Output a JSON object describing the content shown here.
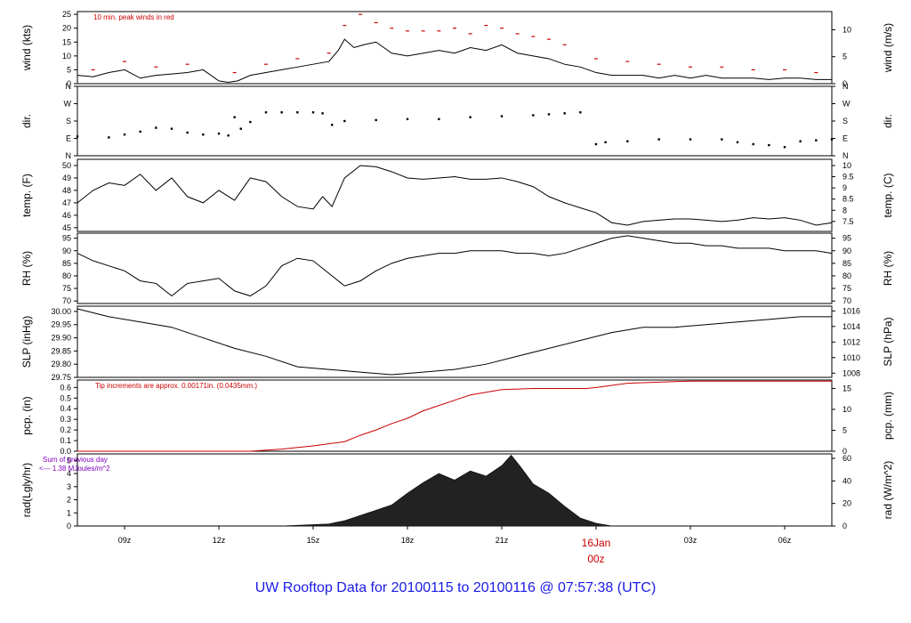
{
  "caption": "UW Rooftop Data for 20100115  to  20100116 @ 07:57:38  (UTC)",
  "notes": {
    "peak_winds": "10 min. peak winds in red",
    "tip": "Tip increments are approx. 0.00171in. (0.0435mm.)",
    "sum_line1": "Sum of previous day",
    "sum_line2": "<--- 1.38 MJoules/m^2"
  },
  "x_axis": {
    "range_hours": [
      7.5,
      31.5
    ],
    "ticks": [
      {
        "h": 9,
        "label": "09z"
      },
      {
        "h": 12,
        "label": "12z"
      },
      {
        "h": 15,
        "label": "15z"
      },
      {
        "h": 18,
        "label": "18z"
      },
      {
        "h": 21,
        "label": "21z"
      },
      {
        "h": 27,
        "label": "03z"
      },
      {
        "h": 30,
        "label": "06z"
      }
    ],
    "day_marker": {
      "h": 24,
      "date": "16Jan",
      "time": "00z"
    }
  },
  "colors": {
    "line": "#000000",
    "peak": "#cc0000",
    "pcp": "#cc0000",
    "note_purple": "#8000c0",
    "caption": "#1a1ae6"
  },
  "chart_data": [
    {
      "id": "wind",
      "type": "line",
      "ylabel": "wind (kts)",
      "ylabel_right": "wind (m/s)",
      "ylim": [
        0,
        26
      ],
      "yticks": [
        0,
        5,
        10,
        15,
        20,
        25
      ],
      "yticks_right": [
        {
          "v": 0,
          "pos": 0
        },
        {
          "v": 5,
          "pos": 9.72
        },
        {
          "v": 10,
          "pos": 19.44
        }
      ],
      "series": [
        {
          "values_x": [
            7.5,
            8.0,
            8.5,
            9.0,
            9.5,
            10.0,
            10.5,
            11.0,
            11.5,
            12.0,
            12.3,
            12.6,
            13.0,
            13.5,
            14.0,
            14.5,
            15.0,
            15.5,
            15.8,
            16.0,
            16.3,
            16.6,
            17.0,
            17.5,
            18.0,
            18.5,
            19.0,
            19.5,
            20.0,
            20.5,
            21.0,
            21.5,
            22.0,
            22.5,
            23.0,
            23.5,
            24.0,
            24.5,
            25.0,
            25.5,
            26.0,
            26.5,
            27.0,
            27.5,
            28.0,
            28.5,
            29.0,
            29.5,
            30.0,
            30.5,
            31.0,
            31.5
          ],
          "values_y": [
            3,
            2.5,
            4,
            5,
            2,
            3,
            3.5,
            4,
            5,
            1,
            0.5,
            1,
            3,
            4,
            5,
            6,
            7,
            8,
            12,
            16,
            13,
            14,
            15,
            11,
            10,
            11,
            12,
            11,
            13,
            12,
            14,
            11,
            10,
            9,
            7,
            6,
            4,
            3,
            3,
            3,
            2,
            3,
            2,
            3,
            2,
            2,
            2,
            1.5,
            2,
            2,
            1.5,
            1.5
          ]
        },
        {
          "name": "peak",
          "values_x": [
            8.0,
            9.0,
            10.0,
            11.0,
            12.5,
            13.5,
            14.5,
            15.5,
            16.0,
            16.5,
            17.0,
            17.5,
            18.0,
            18.5,
            19.0,
            19.5,
            20.0,
            20.5,
            21.0,
            21.5,
            22.0,
            22.5,
            23.0,
            24.0,
            25.0,
            26.0,
            27.0,
            28.0,
            29.0,
            30.0,
            31.0
          ],
          "values_y": [
            5,
            8,
            6,
            7,
            4,
            7,
            9,
            11,
            21,
            25,
            22,
            20,
            19,
            19,
            19,
            20,
            18,
            21,
            20,
            18,
            17,
            16,
            14,
            9,
            8,
            7,
            6,
            6,
            5,
            5,
            4
          ]
        }
      ]
    },
    {
      "id": "dir",
      "type": "scatter",
      "ylabel": "dir.",
      "ylabel_right": "dir.",
      "ylim": [
        0,
        360
      ],
      "ytick_labels": [
        {
          "v": 0,
          "label": "N"
        },
        {
          "v": 90,
          "label": "E"
        },
        {
          "v": 180,
          "label": "S"
        },
        {
          "v": 270,
          "label": "W"
        },
        {
          "v": 360,
          "label": "N"
        }
      ],
      "series": [
        {
          "values_x": [
            7.5,
            8.5,
            9.0,
            9.5,
            10.0,
            10.5,
            11.0,
            11.5,
            12.0,
            12.3,
            12.5,
            12.7,
            13.0,
            13.5,
            14.0,
            14.5,
            15.0,
            15.3,
            15.6,
            16.0,
            17.0,
            18.0,
            19.0,
            20.0,
            21.0,
            22.0,
            22.5,
            23.0,
            23.5,
            24.0,
            24.3,
            25.0,
            26.0,
            27.0,
            28.0,
            28.5,
            29.0,
            29.5,
            30.0,
            30.5,
            31.0,
            31.5
          ],
          "values_y": [
            100,
            95,
            110,
            125,
            145,
            140,
            120,
            110,
            115,
            105,
            200,
            140,
            175,
            225,
            225,
            225,
            225,
            220,
            160,
            180,
            185,
            190,
            190,
            200,
            205,
            210,
            215,
            220,
            225,
            60,
            70,
            75,
            85,
            85,
            85,
            70,
            60,
            55,
            45,
            75,
            80,
            85
          ]
        }
      ]
    },
    {
      "id": "temp",
      "type": "line",
      "ylabel": "temp. (F)",
      "ylabel_right": "temp. (C)",
      "ylim": [
        44.7,
        50.5
      ],
      "yticks": [
        45,
        46,
        47,
        48,
        49,
        50
      ],
      "yticks_right": [
        {
          "v": 7.5,
          "pos": 45.5
        },
        {
          "v": 8,
          "pos": 46.4
        },
        {
          "v": 8.5,
          "pos": 47.3
        },
        {
          "v": 9,
          "pos": 48.2
        },
        {
          "v": 9.5,
          "pos": 49.1
        },
        {
          "v": 10,
          "pos": 50.0
        }
      ],
      "series": [
        {
          "values_x": [
            7.5,
            8.0,
            8.5,
            9.0,
            9.5,
            10.0,
            10.5,
            11.0,
            11.5,
            12.0,
            12.5,
            13.0,
            13.5,
            14.0,
            14.5,
            15.0,
            15.3,
            15.6,
            16.0,
            16.5,
            17.0,
            17.5,
            18.0,
            18.5,
            19.0,
            19.5,
            20.0,
            20.5,
            21.0,
            21.5,
            22.0,
            22.5,
            23.0,
            23.5,
            24.0,
            24.5,
            25.0,
            25.5,
            26.0,
            26.5,
            27.0,
            27.5,
            28.0,
            28.5,
            29.0,
            29.5,
            30.0,
            30.5,
            31.0,
            31.5
          ],
          "values_y": [
            47.0,
            48.0,
            48.6,
            48.4,
            49.3,
            48.0,
            49.0,
            47.5,
            47.0,
            48.0,
            47.2,
            49.0,
            48.7,
            47.5,
            46.7,
            46.5,
            47.5,
            46.7,
            49.0,
            50.0,
            49.9,
            49.5,
            49.0,
            48.9,
            49.0,
            49.1,
            48.9,
            48.9,
            49.0,
            48.7,
            48.3,
            47.5,
            47.0,
            46.6,
            46.2,
            45.4,
            45.2,
            45.5,
            45.6,
            45.7,
            45.7,
            45.6,
            45.5,
            45.6,
            45.8,
            45.7,
            45.8,
            45.6,
            45.2,
            45.4
          ]
        }
      ]
    },
    {
      "id": "rh",
      "type": "line",
      "ylabel": "RH (%)",
      "ylabel_right": "RH (%)",
      "ylim": [
        69,
        97
      ],
      "yticks": [
        70,
        75,
        80,
        85,
        90,
        95
      ],
      "yticks_right": [
        {
          "v": 70,
          "pos": 70
        },
        {
          "v": 75,
          "pos": 75
        },
        {
          "v": 80,
          "pos": 80
        },
        {
          "v": 85,
          "pos": 85
        },
        {
          "v": 90,
          "pos": 90
        },
        {
          "v": 95,
          "pos": 95
        }
      ],
      "series": [
        {
          "values_x": [
            7.5,
            8.0,
            8.5,
            9.0,
            9.5,
            10.0,
            10.5,
            11.0,
            11.5,
            12.0,
            12.5,
            13.0,
            13.5,
            14.0,
            14.5,
            15.0,
            15.5,
            16.0,
            16.5,
            17.0,
            17.5,
            18.0,
            18.5,
            19.0,
            19.5,
            20.0,
            20.5,
            21.0,
            21.5,
            22.0,
            22.5,
            23.0,
            23.5,
            24.0,
            24.5,
            25.0,
            25.5,
            26.0,
            26.5,
            27.0,
            27.5,
            28.0,
            28.5,
            29.0,
            29.5,
            30.0,
            30.5,
            31.0,
            31.5
          ],
          "values_y": [
            89,
            86,
            84,
            82,
            78,
            77,
            72,
            77,
            78,
            79,
            74,
            72,
            76,
            84,
            87,
            86,
            81,
            76,
            78,
            82,
            85,
            87,
            88,
            89,
            89,
            90,
            90,
            90,
            89,
            89,
            88,
            89,
            91,
            93,
            95,
            96,
            95,
            94,
            93,
            93,
            92,
            92,
            91,
            91,
            91,
            90,
            90,
            90,
            89
          ]
        }
      ]
    },
    {
      "id": "slp",
      "type": "line",
      "ylabel": "SLP (inHg)",
      "ylabel_right": "SLP (hPa)",
      "ylim": [
        29.75,
        30.02
      ],
      "yticks": [
        29.75,
        29.8,
        29.85,
        29.9,
        29.95,
        30.0
      ],
      "ytick_labels_text": [
        "29.75",
        "29.80",
        "29.85",
        "29.90",
        "29.95",
        "30.00"
      ],
      "yticks_right": [
        {
          "v": 1008,
          "pos": 29.766
        },
        {
          "v": 1010,
          "pos": 29.825
        },
        {
          "v": 1012,
          "pos": 29.884
        },
        {
          "v": 1014,
          "pos": 29.943
        },
        {
          "v": 1016,
          "pos": 30.002
        }
      ],
      "series": [
        {
          "values_x": [
            7.5,
            8.5,
            9.5,
            10.5,
            11.5,
            12.5,
            13.5,
            14.5,
            15.5,
            16.5,
            17.5,
            18.5,
            19.5,
            20.5,
            21.5,
            22.5,
            23.5,
            24.5,
            25.5,
            26.5,
            27.5,
            28.5,
            29.5,
            30.5,
            31.5
          ],
          "values_y": [
            30.01,
            29.98,
            29.96,
            29.94,
            29.9,
            29.86,
            29.83,
            29.79,
            29.78,
            29.77,
            29.76,
            29.77,
            29.78,
            29.8,
            29.83,
            29.86,
            29.89,
            29.92,
            29.94,
            29.94,
            29.95,
            29.96,
            29.97,
            29.98,
            29.98
          ]
        }
      ]
    },
    {
      "id": "pcp",
      "type": "line",
      "ylabel": "pcp. (in)",
      "ylabel_right": "pcp. (mm)",
      "ylim": [
        0,
        0.67
      ],
      "yticks": [
        0,
        0.1,
        0.2,
        0.3,
        0.4,
        0.5,
        0.6
      ],
      "ytick_labels_text": [
        "0.0",
        "0.1",
        "0.2",
        "0.3",
        "0.4",
        "0.5",
        "0.6"
      ],
      "yticks_right": [
        {
          "v": 0,
          "pos": 0
        },
        {
          "v": 5,
          "pos": 0.197
        },
        {
          "v": 10,
          "pos": 0.394
        },
        {
          "v": 15,
          "pos": 0.591
        }
      ],
      "series": [
        {
          "values_x": [
            7.5,
            13.0,
            14.0,
            15.0,
            15.5,
            16.0,
            16.5,
            17.0,
            17.5,
            18.0,
            18.5,
            19.0,
            19.5,
            20.0,
            21.0,
            22.0,
            23.0,
            23.7,
            24.0,
            24.5,
            25.0,
            26.0,
            27.0,
            31.5
          ],
          "values_y": [
            0,
            0,
            0.02,
            0.05,
            0.07,
            0.09,
            0.15,
            0.2,
            0.26,
            0.31,
            0.38,
            0.43,
            0.48,
            0.53,
            0.58,
            0.59,
            0.59,
            0.59,
            0.6,
            0.62,
            0.64,
            0.65,
            0.66,
            0.66
          ]
        }
      ]
    },
    {
      "id": "rad",
      "type": "area",
      "ylabel": "rad(Lgly/hr)",
      "ylabel_right": "rad (W/m^2)",
      "ylim": [
        0,
        5.5
      ],
      "yticks": [
        0,
        1,
        2,
        3,
        4,
        5
      ],
      "yticks_right": [
        {
          "v": 0,
          "pos": 0
        },
        {
          "v": 20,
          "pos": 1.72
        },
        {
          "v": 40,
          "pos": 3.44
        },
        {
          "v": 60,
          "pos": 5.16
        }
      ],
      "series": [
        {
          "values_x": [
            14.0,
            14.5,
            15.0,
            15.5,
            16.0,
            16.5,
            17.0,
            17.5,
            18.0,
            18.5,
            19.0,
            19.5,
            20.0,
            20.5,
            21.0,
            21.3,
            21.6,
            22.0,
            22.5,
            23.0,
            23.5,
            24.0,
            24.5
          ],
          "values_y": [
            0,
            0.05,
            0.1,
            0.15,
            0.4,
            0.8,
            1.2,
            1.6,
            2.5,
            3.3,
            4.0,
            3.5,
            4.2,
            3.8,
            4.6,
            5.4,
            4.5,
            3.2,
            2.5,
            1.5,
            0.6,
            0.2,
            0
          ]
        }
      ]
    }
  ]
}
